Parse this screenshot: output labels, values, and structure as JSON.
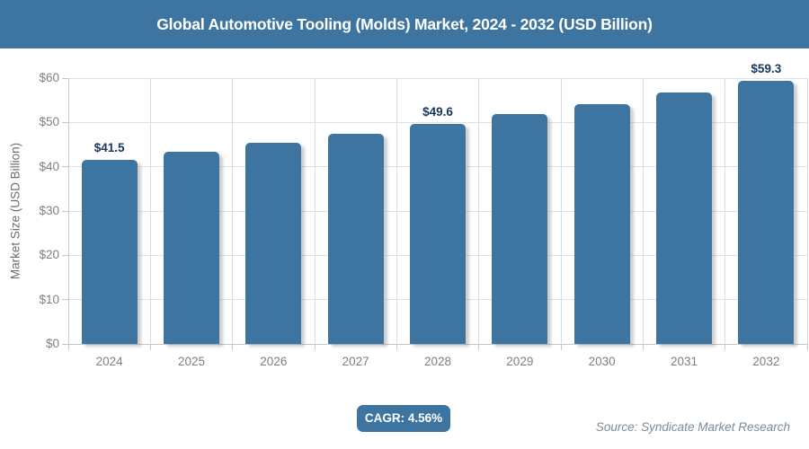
{
  "header": {
    "title": "Global Automotive Tooling (Molds) Market, 2024 - 2032 (USD Billion)"
  },
  "chart_data": {
    "type": "bar",
    "title": "Global Automotive Tooling (Molds) Market, 2024 - 2032 (USD Billion)",
    "categories": [
      "2024",
      "2025",
      "2026",
      "2027",
      "2028",
      "2029",
      "2030",
      "2031",
      "2032"
    ],
    "values": [
      41.5,
      43.4,
      45.4,
      47.4,
      49.6,
      51.9,
      54.2,
      56.7,
      59.3
    ],
    "value_labels": [
      "$41.5",
      "",
      "",
      "",
      "$49.6",
      "",
      "",
      "",
      "$59.3"
    ],
    "xlabel": "",
    "ylabel": "Market Size (USD Billion)",
    "ylim": [
      0,
      60
    ],
    "ytick_step": 10,
    "ytick_labels": [
      "$0",
      "$10",
      "$20",
      "$30",
      "$40",
      "$50",
      "$60"
    ],
    "grid": true,
    "legend": false
  },
  "footer": {
    "cagr_label": "CAGR: 4.56%",
    "source": "Source: Syndicate Market Research"
  },
  "colors": {
    "accent": "#3e75a0",
    "bar_fill": "#3e75a0",
    "value_label_text": "#17375e",
    "axis_text": "#7f7f7f",
    "gridline": "#e0e0e0",
    "axis_line": "#c6c6c6",
    "header_text": "#ffffff",
    "source_text": "#7e8b95"
  }
}
